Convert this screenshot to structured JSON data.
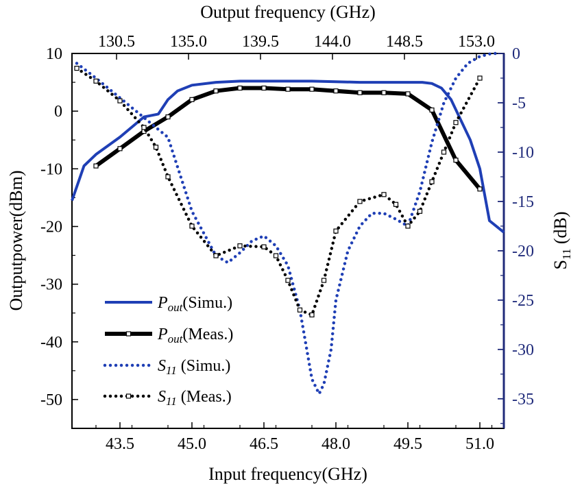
{
  "chart_data": {
    "type": "line",
    "x_bottom": {
      "label": "Input frequency(GHz)",
      "range": [
        42.5,
        51.5
      ],
      "ticks": [
        "43.5",
        "45.0",
        "46.5",
        "48.0",
        "49.5",
        "51.0"
      ]
    },
    "x_top": {
      "label": "Output frequency (GHz)",
      "ticks": [
        "130.5",
        "135.0",
        "139.5",
        "144.0",
        "148.5",
        "153.0"
      ]
    },
    "y_left": {
      "label": "Outputpower(dBm)",
      "range": [
        -55,
        10
      ],
      "ticks": [
        "10",
        "0",
        "-10",
        "-20",
        "-30",
        "-40",
        "-50"
      ]
    },
    "y_right": {
      "label_main": "S",
      "label_sub": "11",
      "label_unit": " (dB)",
      "range": [
        -38,
        0
      ],
      "ticks": [
        "0",
        "-5",
        "-10",
        "-15",
        "-20",
        "-25",
        "-30",
        "-35"
      ]
    },
    "colors": {
      "simu": "#1f3fb5",
      "meas": "#000000",
      "right_axis": "#1f2a7a"
    },
    "series": [
      {
        "id": "pout-simu",
        "name_main": "P",
        "name_sub": "out",
        "name_tail": "(Simu.)",
        "axis": "left",
        "style": "solid",
        "markers": false,
        "x": [
          42.5,
          42.75,
          43.0,
          43.5,
          44.0,
          44.3,
          44.5,
          44.7,
          45.0,
          45.5,
          46.0,
          46.5,
          47.0,
          47.5,
          48.0,
          48.5,
          49.0,
          49.5,
          49.8,
          50.0,
          50.2,
          50.4,
          50.6,
          50.8,
          51.0,
          51.2,
          51.5
        ],
        "y": [
          -15.5,
          -9.5,
          -7.5,
          -4.5,
          -1,
          -0.5,
          2,
          3.5,
          4.5,
          5,
          5.2,
          5.2,
          5.2,
          5.2,
          5.1,
          5.0,
          5.0,
          5.0,
          5.0,
          4.8,
          4.0,
          2.0,
          -1.5,
          -5.0,
          -10.0,
          -19.0,
          -21.0
        ]
      },
      {
        "id": "pout-meas",
        "name_main": "P",
        "name_sub": "out",
        "name_tail": "(Meas.)",
        "axis": "left",
        "style": "solid-thick",
        "markers": true,
        "x": [
          43.0,
          43.5,
          44.0,
          44.5,
          45.0,
          45.5,
          46.0,
          46.5,
          47.0,
          47.5,
          48.0,
          48.5,
          49.0,
          49.5,
          50.0,
          50.5,
          51.0
        ],
        "y": [
          -9.5,
          -6.5,
          -3.5,
          -1.0,
          2.0,
          3.5,
          4.0,
          4.0,
          3.8,
          3.8,
          3.5,
          3.2,
          3.2,
          3.0,
          0.2,
          -8.5,
          -13.5
        ]
      },
      {
        "id": "s11-simu",
        "name_main": "S",
        "name_sub": "11",
        "name_tail": " (Simu.)",
        "axis": "right",
        "style": "dotted",
        "markers": false,
        "x": [
          42.6,
          43.0,
          43.5,
          44.0,
          44.5,
          45.0,
          45.5,
          45.75,
          46.0,
          46.25,
          46.5,
          46.75,
          47.0,
          47.25,
          47.5,
          47.65,
          47.75,
          47.9,
          48.0,
          48.25,
          48.5,
          48.75,
          49.0,
          49.25,
          49.5,
          49.75,
          50.0,
          50.25,
          50.5,
          50.75,
          51.0,
          51.25,
          51.4
        ],
        "y": [
          -1.0,
          -2.5,
          -4.5,
          -6.5,
          -8.5,
          -16.0,
          -20.5,
          -21.2,
          -20.2,
          -19.0,
          -18.5,
          -19.5,
          -21.5,
          -26.0,
          -33.0,
          -34.5,
          -33.5,
          -30.0,
          -25.0,
          -20.0,
          -17.5,
          -16.2,
          -16.2,
          -16.8,
          -17.5,
          -14.0,
          -9.0,
          -5.0,
          -2.5,
          -1.0,
          -0.3,
          0.0,
          0.0
        ]
      },
      {
        "id": "s11-meas",
        "name_main": "S",
        "name_sub": "11",
        "name_tail": " (Meas.)",
        "axis": "right",
        "style": "dotted",
        "markers": true,
        "x": [
          42.6,
          43.0,
          43.5,
          44.0,
          44.25,
          44.5,
          45.0,
          45.5,
          46.0,
          46.5,
          46.75,
          47.0,
          47.25,
          47.5,
          47.75,
          48.0,
          48.5,
          49.0,
          49.25,
          49.5,
          49.75,
          50.0,
          50.25,
          50.5,
          51.0
        ],
        "y": [
          -1.5,
          -2.8,
          -4.8,
          -7.5,
          -9.5,
          -12.5,
          -17.5,
          -20.5,
          -19.5,
          -19.6,
          -20.5,
          -23.0,
          -26.0,
          -26.5,
          -23.0,
          -18.0,
          -15.0,
          -14.3,
          -15.3,
          -17.5,
          -16.0,
          -13.0,
          -10.0,
          -7.0,
          -2.5
        ]
      }
    ]
  }
}
